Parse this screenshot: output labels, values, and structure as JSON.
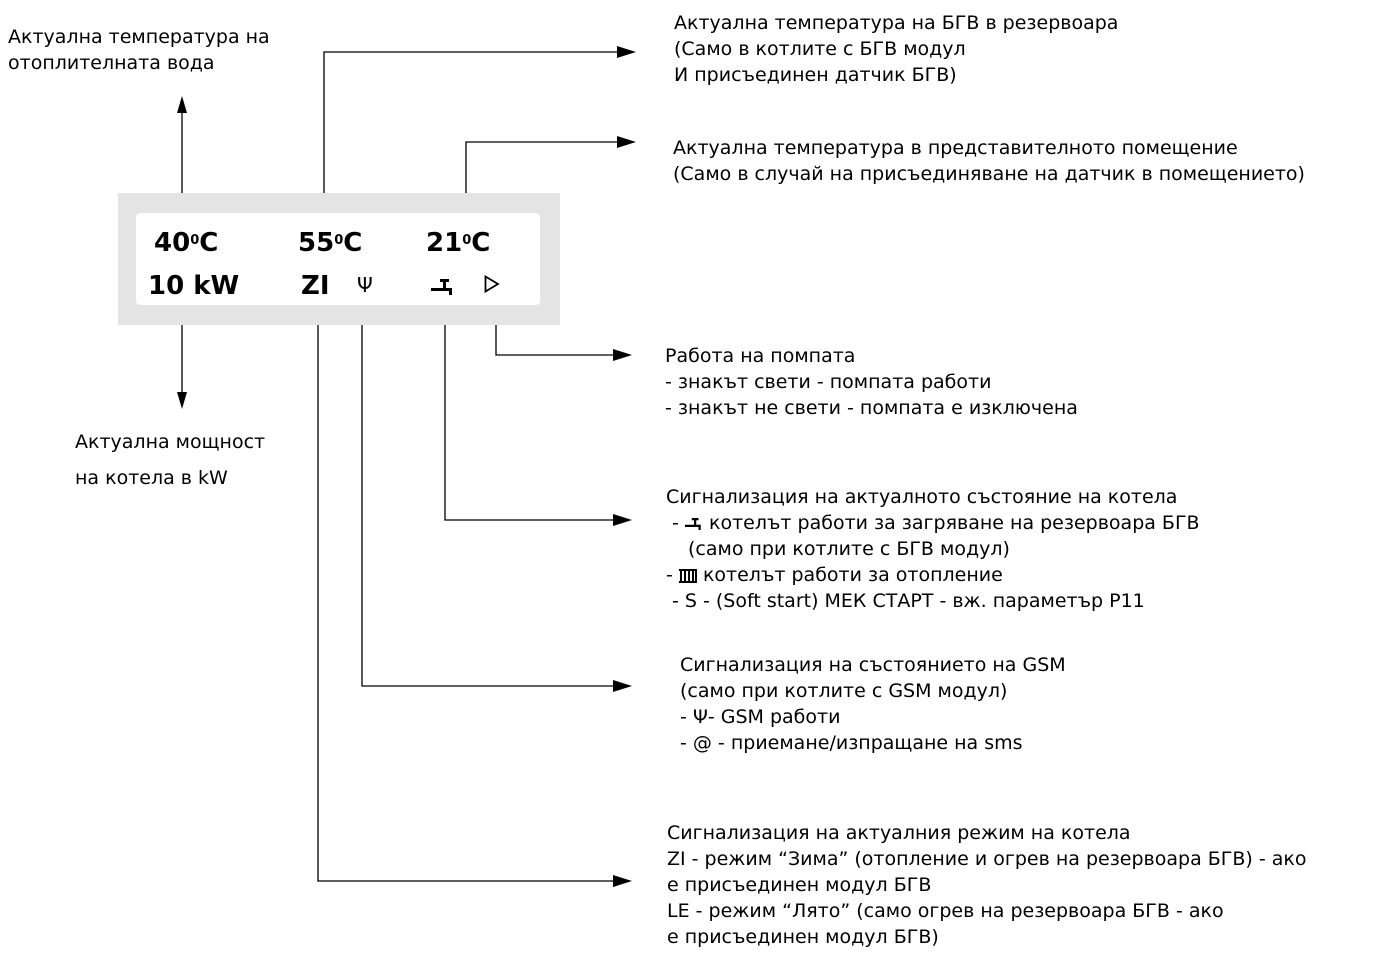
{
  "display": {
    "temp_heating": "40",
    "temp_dhw": "55",
    "temp_room": "21",
    "unit": "C",
    "degree": "0",
    "power": "10 kW",
    "mode": "ZI",
    "gsm_symbol": "Ψ",
    "pump_symbol": "▷"
  },
  "labels": {
    "heating_temp": [
      "Актуална температура на",
      "отоплителната вода"
    ],
    "boiler_power": [
      "Актуална мощност",
      "на котела в kW"
    ],
    "dhw_temp": [
      "Актуална температура на БГВ в резервоара",
      "(Само в котлите с БГВ модул",
      "И присъединен датчик БГВ)"
    ],
    "room_temp": [
      "Актуална температура в представителното помещение",
      "(Само в случай на присъединяване на датчик в помещението)"
    ],
    "pump": [
      "Работа на помпата",
      "- знакът свети - помпата работи",
      "- знакът не свети - помпата е изключена"
    ],
    "boiler_state": {
      "title": "Сигнализация на актуалното състояние на котела",
      "tap_text": "котелът работи за загряване на резервоара БГВ",
      "tap_note": "(само при котлите с БГВ модул)",
      "radiator_text": "котелът работи за отопление",
      "soft_start": "- S - (Soft start) МЕК СТАРТ - вж. параметър P11"
    },
    "gsm": [
      "Сигнализация на състоянието на GSM",
      "(само при котлите с GSM модул)",
      "- Ψ- GSM работи",
      "- @ - приемане/изпращане на sms"
    ],
    "mode": [
      "Сигнализация на актуалния режим на котела",
      "ZI - режим “Зима” (отопление и огрев на резервоара БГВ) - ако",
      "е присъединен модул БГВ",
      "LE - режим “Лято” (само огрев на резервоара БГВ - ако",
      "е присъединен модул БГВ)"
    ]
  },
  "icons": {
    "tap": "tap-icon",
    "radiator": "radiator-icon",
    "pump": "pump-triangle-icon",
    "gsm": "antenna-icon"
  }
}
